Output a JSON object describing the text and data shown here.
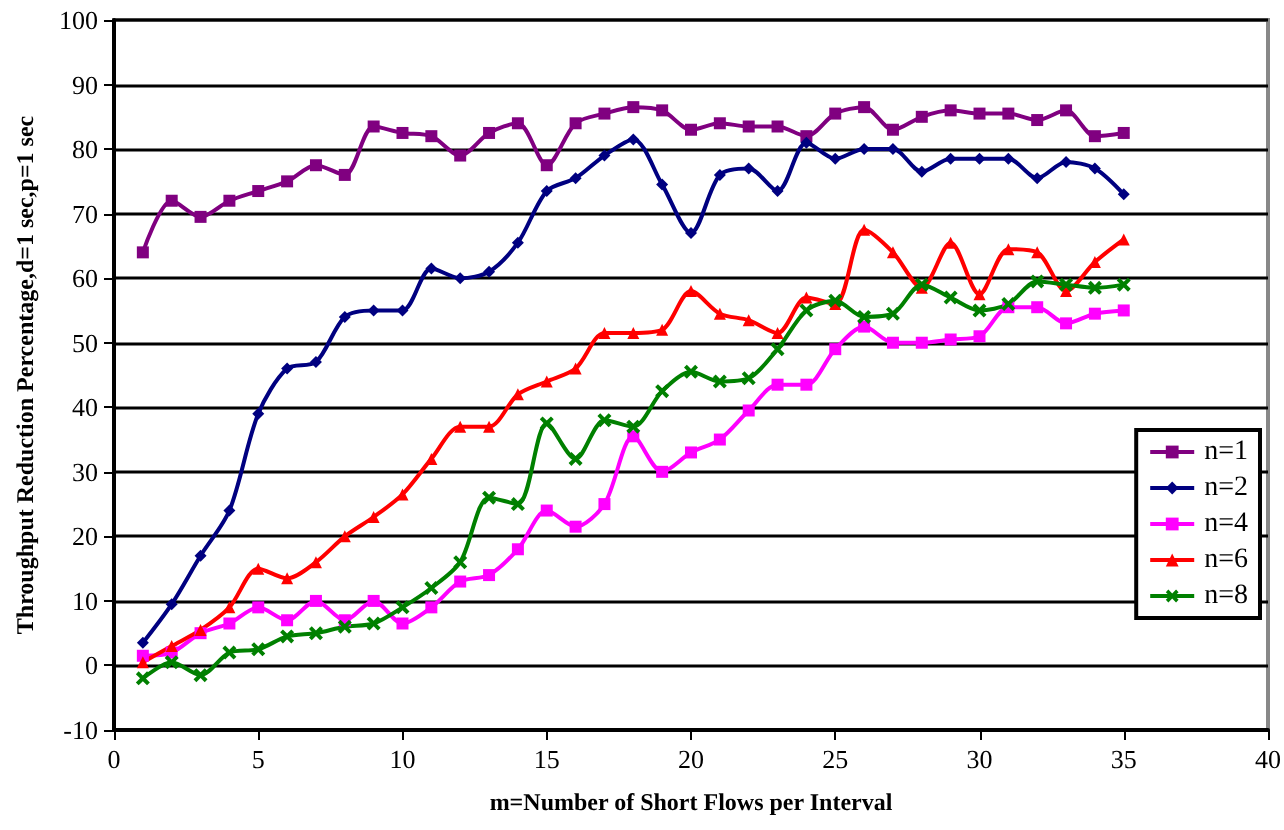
{
  "chart_data": {
    "type": "line",
    "xlabel": "m=Number of Short Flows per Interval",
    "ylabel": "Throughput Reduction Percentage,d=1 sec,p=1 sec",
    "x": [
      1,
      2,
      3,
      4,
      5,
      6,
      7,
      8,
      9,
      10,
      11,
      12,
      13,
      14,
      15,
      16,
      17,
      18,
      19,
      20,
      21,
      22,
      23,
      24,
      25,
      26,
      27,
      28,
      29,
      30,
      31,
      32,
      33,
      34,
      35
    ],
    "series": [
      {
        "name": "n=1",
        "color": "#800080",
        "marker": "square",
        "values": [
          64,
          72,
          69.5,
          72,
          73.5,
          75,
          77.5,
          76,
          83.5,
          82.5,
          82,
          79,
          82.5,
          84,
          77.5,
          84,
          85.5,
          86.5,
          86,
          83,
          84,
          83.5,
          83.5,
          82,
          85.5,
          86.5,
          83,
          85,
          86,
          85.5,
          85.5,
          84.5,
          86,
          82,
          82.5
        ]
      },
      {
        "name": "n=2",
        "color": "#000080",
        "marker": "diamond",
        "values": [
          3.5,
          9.5,
          17,
          24,
          39,
          46,
          47,
          54,
          55,
          55,
          61.5,
          60,
          61,
          65.5,
          73.5,
          75.5,
          79,
          81.5,
          74.5,
          67,
          76,
          77,
          73.5,
          81,
          78.5,
          80,
          80,
          76.5,
          78.5,
          78.5,
          78.5,
          75.5,
          78,
          77,
          73
        ]
      },
      {
        "name": "n=4",
        "color": "#ff00ff",
        "marker": "square",
        "values": [
          1.5,
          2,
          5,
          6.5,
          9,
          7,
          10,
          7,
          10,
          6.5,
          9,
          13,
          14,
          18,
          24,
          21.5,
          25,
          35.5,
          30,
          33,
          35,
          39.5,
          43.5,
          43.5,
          49,
          52.5,
          50,
          50,
          50.5,
          51,
          55.5,
          55.5,
          53,
          54.5,
          55
        ]
      },
      {
        "name": "n=6",
        "color": "#ff0000",
        "marker": "triangle",
        "values": [
          0.5,
          3,
          5.5,
          9,
          15,
          13.5,
          16,
          20,
          23,
          26.5,
          32,
          37,
          37,
          42,
          44,
          46,
          51.5,
          51.5,
          52,
          58,
          54.5,
          53.5,
          51.5,
          57,
          56,
          67.5,
          64,
          58.5,
          65.5,
          57.5,
          64.5,
          64,
          58,
          62.5,
          66
        ]
      },
      {
        "name": "n=8",
        "color": "#008000",
        "marker": "cross",
        "values": [
          -2,
          0.5,
          -1.5,
          2,
          2.5,
          4.5,
          5,
          6,
          6.5,
          9,
          12,
          16,
          26,
          25,
          37.5,
          32,
          38,
          37,
          42.5,
          45.5,
          44,
          44.5,
          49,
          55,
          56.5,
          54,
          54.5,
          59,
          57,
          55,
          56,
          59.5,
          59,
          58.5,
          59
        ]
      }
    ],
    "xlim": [
      0,
      40
    ],
    "xticks": [
      0,
      5,
      10,
      15,
      20,
      25,
      30,
      35,
      40
    ],
    "ylim": [
      -10,
      100
    ],
    "yticks": [
      -10,
      0,
      10,
      20,
      30,
      40,
      50,
      60,
      70,
      80,
      90,
      100
    ],
    "grid": "y",
    "legend": "right"
  }
}
